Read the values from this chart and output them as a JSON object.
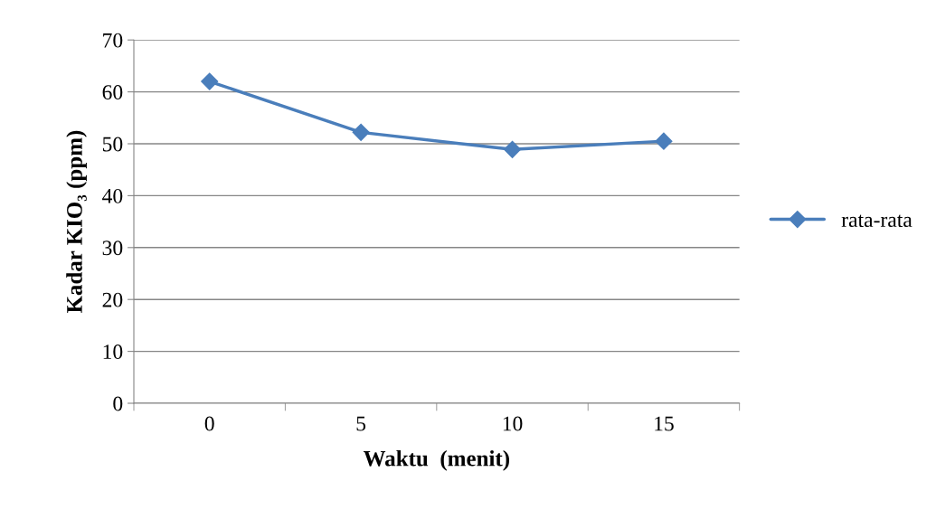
{
  "chart_data": {
    "type": "line",
    "xlabel": "Waktu  (menit)",
    "ylabel": "Kadar KIO₃ (ppm)",
    "categories": [
      "0",
      "5",
      "10",
      "15"
    ],
    "series": [
      {
        "name": "rata-rata",
        "color": "#4a7ebb",
        "values": [
          62.0,
          52.2,
          48.9,
          50.5
        ]
      }
    ],
    "ylim": [
      0,
      70
    ],
    "yticks": [
      0,
      10,
      20,
      30,
      40,
      50,
      60,
      70
    ],
    "grid": "y",
    "legend": "right",
    "marker": "diamond",
    "line_style": "solid"
  }
}
